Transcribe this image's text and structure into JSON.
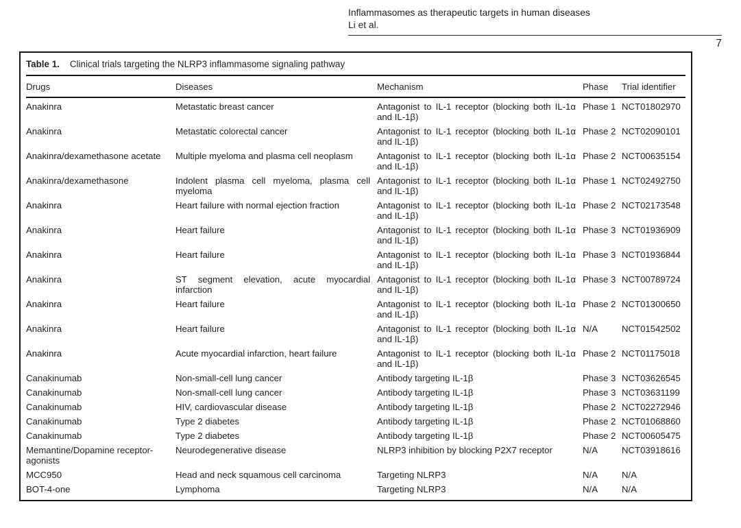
{
  "page": {
    "running_head_line1": "Inflammasomes as therapeutic targets in human diseases",
    "running_head_line2": "Li et al.",
    "page_number": "7"
  },
  "table": {
    "label": "Table 1.",
    "caption": "Clinical trials targeting the NLRP3 inflammasome signaling pathway",
    "columns": [
      "Drugs",
      "Diseases",
      "Mechanism",
      "Phase",
      "Trial identifier"
    ],
    "rows": [
      {
        "drug": "Anakinra",
        "disease": "Metastatic breast cancer",
        "mechanism": "Antagonist to IL-1 receptor (blocking both IL-1α and IL-1β)",
        "phase": "Phase 1",
        "trial_id": "NCT01802970"
      },
      {
        "drug": "Anakinra",
        "disease": "Metastatic colorectal cancer",
        "mechanism": "Antagonist to IL-1 receptor (blocking both IL-1α and IL-1β)",
        "phase": "Phase 2",
        "trial_id": "NCT02090101"
      },
      {
        "drug": "Anakinra/dexamethasone acetate",
        "disease": "Multiple myeloma and plasma cell neoplasm",
        "mechanism": "Antagonist to IL-1 receptor (blocking both IL-1α and IL-1β)",
        "phase": "Phase 2",
        "trial_id": "NCT00635154"
      },
      {
        "drug": "Anakinra/dexamethasone",
        "disease": "Indolent plasma cell myeloma, plasma cell myeloma",
        "mechanism": "Antagonist to IL-1 receptor (blocking both IL-1α and IL-1β)",
        "phase": "Phase 1",
        "trial_id": "NCT02492750"
      },
      {
        "drug": "Anakinra",
        "disease": "Heart failure with normal ejection fraction",
        "mechanism": "Antagonist to IL-1 receptor (blocking both IL-1α and IL-1β)",
        "phase": "Phase 2",
        "trial_id": "NCT02173548"
      },
      {
        "drug": "Anakinra",
        "disease": "Heart failure",
        "mechanism": "Antagonist to IL-1 receptor (blocking both IL-1α and IL-1β)",
        "phase": "Phase 3",
        "trial_id": "NCT01936909"
      },
      {
        "drug": "Anakinra",
        "disease": "Heart failure",
        "mechanism": "Antagonist to IL-1 receptor (blocking both IL-1α and IL-1β)",
        "phase": "Phase 3",
        "trial_id": "NCT01936844"
      },
      {
        "drug": "Anakinra",
        "disease": "ST segment elevation, acute myocardial infarction",
        "mechanism": "Antagonist to IL-1 receptor (blocking both IL-1α and IL-1β)",
        "phase": "Phase 3",
        "trial_id": "NCT00789724"
      },
      {
        "drug": "Anakinra",
        "disease": "Heart failure",
        "mechanism": "Antagonist to IL-1 receptor (blocking both IL-1α and IL-1β)",
        "phase": "Phase 2",
        "trial_id": "NCT01300650"
      },
      {
        "drug": "Anakinra",
        "disease": "Heart failure",
        "mechanism": "Antagonist to IL-1 receptor (blocking both IL-1α and IL-1β)",
        "phase": "N/A",
        "trial_id": "NCT01542502"
      },
      {
        "drug": "Anakinra",
        "disease": "Acute myocardial infarction, heart failure",
        "mechanism": "Antagonist to IL-1 receptor (blocking both IL-1α and IL-1β)",
        "phase": "Phase 2",
        "trial_id": "NCT01175018"
      },
      {
        "drug": "Canakinumab",
        "disease": "Non-small-cell lung cancer",
        "mechanism": "Antibody targeting IL-1β",
        "phase": "Phase 3",
        "trial_id": "NCT03626545"
      },
      {
        "drug": "Canakinumab",
        "disease": "Non-small-cell lung cancer",
        "mechanism": "Antibody targeting IL-1β",
        "phase": "Phase 3",
        "trial_id": "NCT03631199"
      },
      {
        "drug": "Canakinumab",
        "disease": "HIV, cardiovascular disease",
        "mechanism": "Antibody targeting IL-1β",
        "phase": "Phase 2",
        "trial_id": "NCT02272946"
      },
      {
        "drug": "Canakinumab",
        "disease": "Type 2 diabetes",
        "mechanism": "Antibody targeting IL-1β",
        "phase": "Phase 2",
        "trial_id": "NCT01068860"
      },
      {
        "drug": "Canakinumab",
        "disease": "Type 2 diabetes",
        "mechanism": "Antibody targeting IL-1β",
        "phase": "Phase 2",
        "trial_id": "NCT00605475"
      },
      {
        "drug": "Memantine/Dopamine receptor-agonists",
        "disease": "Neurodegenerative disease",
        "mechanism": "NLRP3 inhibition by blocking P2X7 receptor",
        "phase": "N/A",
        "trial_id": "NCT03918616"
      },
      {
        "drug": "MCC950",
        "disease": "Head and neck squamous cell carcinoma",
        "mechanism": "Targeting NLRP3",
        "phase": "N/A",
        "trial_id": "N/A"
      },
      {
        "drug": "BOT-4-one",
        "disease": "Lymphoma",
        "mechanism": "Targeting NLRP3",
        "phase": "N/A",
        "trial_id": "N/A"
      }
    ]
  }
}
